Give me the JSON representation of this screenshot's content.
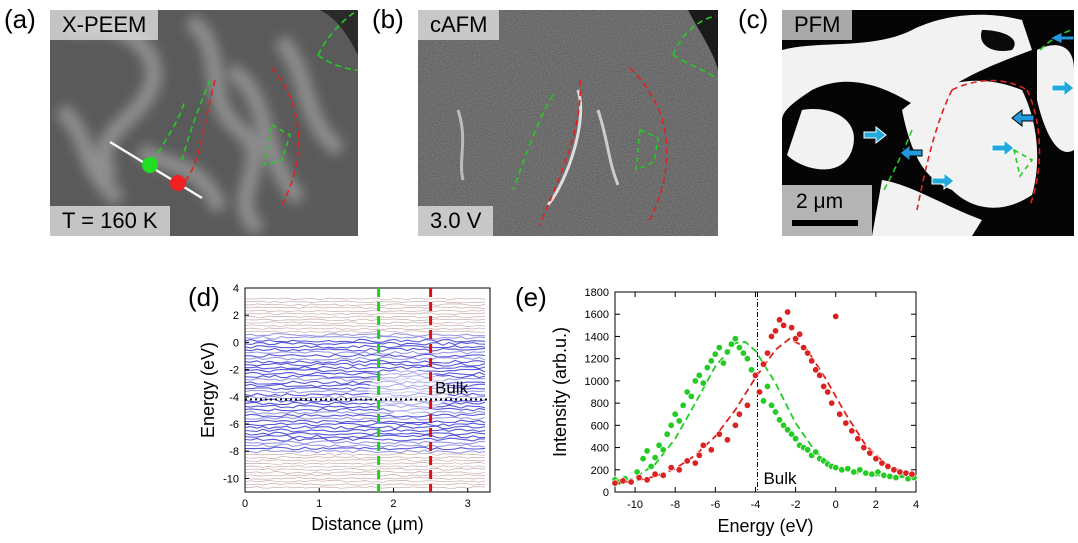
{
  "panels": {
    "a": {
      "label": "(a)",
      "title": "X-PEEM",
      "caption": "T = 160 K"
    },
    "b": {
      "label": "(b)",
      "title": "cAFM",
      "caption": "3.0 V"
    },
    "c": {
      "label": "(c)",
      "title": "PFM",
      "scalebar": "2 μm"
    },
    "d": {
      "label": "(d)"
    },
    "e": {
      "label": "(e)"
    }
  },
  "chart_data": [
    {
      "type": "heatmap",
      "panel": "d",
      "xlabel": "Distance (μm)",
      "ylabel": "Energy (eV)",
      "xlim": [
        0,
        3.3
      ],
      "ylim": [
        -11,
        4
      ],
      "xticks": [
        "0",
        "1",
        "2",
        "3"
      ],
      "yticks": [
        "4",
        "2",
        "0",
        "-2",
        "-4",
        "-6",
        "-8",
        "-10"
      ],
      "xtick_values": [
        0,
        1,
        2,
        3
      ],
      "ytick_values": [
        4,
        2,
        0,
        -2,
        -4,
        -6,
        -8,
        -10
      ],
      "markers": [
        {
          "orientation": "vertical",
          "x": 1.8,
          "color": "#22cc22"
        },
        {
          "orientation": "vertical",
          "x": 2.5,
          "color": "#dd1111"
        },
        {
          "orientation": "horizontal",
          "y": -4.2,
          "color": "#000000",
          "label": "Bulk"
        }
      ]
    },
    {
      "type": "scatter",
      "panel": "e",
      "xlabel": "Energy (eV)",
      "ylabel": "Intensity (arb.u.)",
      "xlim": [
        -11,
        4
      ],
      "ylim": [
        0,
        1800
      ],
      "xticks": [
        "-10",
        "-8",
        "-6",
        "-4",
        "-2",
        "0",
        "2",
        "4"
      ],
      "yticks": [
        "0",
        "200",
        "400",
        "600",
        "800",
        "1000",
        "1200",
        "1400",
        "1600",
        "1800"
      ],
      "xtick_values": [
        -10,
        -8,
        -6,
        -4,
        -2,
        0,
        2,
        4
      ],
      "ytick_values": [
        0,
        200,
        400,
        600,
        800,
        1000,
        1200,
        1400,
        1600,
        1800
      ],
      "vline": {
        "x": -3.9,
        "label": "Bulk"
      },
      "series": [
        {
          "color": "#22cc22",
          "points": [
            [
              -11,
              110
            ],
            [
              -10.8,
              90
            ],
            [
              -10.5,
              120
            ],
            [
              -10.2,
              100
            ],
            [
              -9.9,
              180
            ],
            [
              -9.6,
              300
            ],
            [
              -9.4,
              370
            ],
            [
              -9.2,
              230
            ],
            [
              -9.0,
              310
            ],
            [
              -8.8,
              420
            ],
            [
              -8.6,
              380
            ],
            [
              -8.4,
              520
            ],
            [
              -8.2,
              600
            ],
            [
              -8.0,
              700
            ],
            [
              -7.8,
              640
            ],
            [
              -7.6,
              780
            ],
            [
              -7.4,
              900
            ],
            [
              -7.2,
              860
            ],
            [
              -7.0,
              1000
            ],
            [
              -6.8,
              1050
            ],
            [
              -6.6,
              980
            ],
            [
              -6.4,
              1120
            ],
            [
              -6.2,
              1180
            ],
            [
              -6.0,
              1240
            ],
            [
              -5.8,
              1300
            ],
            [
              -5.6,
              1160
            ],
            [
              -5.4,
              1260
            ],
            [
              -5.2,
              1330
            ],
            [
              -5.0,
              1380
            ],
            [
              -4.8,
              1300
            ],
            [
              -4.6,
              1250
            ],
            [
              -4.4,
              1200
            ],
            [
              -4.2,
              1100
            ],
            [
              -4.0,
              1050
            ],
            [
              -3.8,
              900
            ],
            [
              -3.6,
              820
            ],
            [
              -3.4,
              950
            ],
            [
              -3.2,
              780
            ],
            [
              -3.0,
              720
            ],
            [
              -2.8,
              650
            ],
            [
              -2.6,
              600
            ],
            [
              -2.4,
              560
            ],
            [
              -2.2,
              520
            ],
            [
              -2.0,
              480
            ],
            [
              -1.8,
              420
            ],
            [
              -1.6,
              400
            ],
            [
              -1.4,
              380
            ],
            [
              -1.2,
              330
            ],
            [
              -1.0,
              360
            ],
            [
              -0.8,
              300
            ],
            [
              -0.6,
              280
            ],
            [
              -0.4,
              250
            ],
            [
              -0.2,
              230
            ],
            [
              0.0,
              220
            ],
            [
              0.3,
              200
            ],
            [
              0.6,
              210
            ],
            [
              0.9,
              180
            ],
            [
              1.2,
              200
            ],
            [
              1.5,
              170
            ],
            [
              1.8,
              160
            ],
            [
              2.1,
              180
            ],
            [
              2.4,
              150
            ],
            [
              2.7,
              140
            ],
            [
              3.0,
              130
            ],
            [
              3.3,
              150
            ],
            [
              3.6,
              120
            ],
            [
              3.9,
              130
            ]
          ],
          "fit": [
            [
              -11,
              80
            ],
            [
              -10,
              130
            ],
            [
              -9,
              250
            ],
            [
              -8,
              480
            ],
            [
              -7,
              800
            ],
            [
              -6,
              1130
            ],
            [
              -5,
              1340
            ],
            [
              -4.5,
              1350
            ],
            [
              -4,
              1270
            ],
            [
              -3,
              980
            ],
            [
              -2,
              620
            ],
            [
              -1,
              360
            ],
            [
              0,
              220
            ],
            [
              1,
              170
            ],
            [
              2,
              150
            ],
            [
              3,
              140
            ],
            [
              4,
              130
            ]
          ]
        },
        {
          "color": "#dd2222",
          "points": [
            [
              -11,
              80
            ],
            [
              -10.6,
              100
            ],
            [
              -10.2,
              90
            ],
            [
              -9.8,
              130
            ],
            [
              -9.4,
              110
            ],
            [
              -9.0,
              160
            ],
            [
              -8.6,
              150
            ],
            [
              -8.2,
              220
            ],
            [
              -7.8,
              200
            ],
            [
              -7.4,
              280
            ],
            [
              -7.0,
              260
            ],
            [
              -6.8,
              330
            ],
            [
              -6.6,
              420
            ],
            [
              -6.2,
              380
            ],
            [
              -5.8,
              520
            ],
            [
              -5.4,
              470
            ],
            [
              -5.0,
              600
            ],
            [
              -4.8,
              700
            ],
            [
              -4.4,
              780
            ],
            [
              -4.0,
              1050
            ],
            [
              -3.8,
              900
            ],
            [
              -3.6,
              1150
            ],
            [
              -3.4,
              1250
            ],
            [
              -3.2,
              1400
            ],
            [
              -3.0,
              1450
            ],
            [
              -2.8,
              1550
            ],
            [
              -2.6,
              1500
            ],
            [
              -2.4,
              1620
            ],
            [
              -2.2,
              1480
            ],
            [
              -2.0,
              1380
            ],
            [
              -1.8,
              1420
            ],
            [
              -1.6,
              1300
            ],
            [
              -1.4,
              1250
            ],
            [
              -1.2,
              1180
            ],
            [
              -1.0,
              1100
            ],
            [
              -0.8,
              1050
            ],
            [
              -0.6,
              950
            ],
            [
              -0.4,
              900
            ],
            [
              -0.2,
              800
            ],
            [
              0.0,
              1580
            ],
            [
              0.2,
              700
            ],
            [
              0.5,
              620
            ],
            [
              0.8,
              550
            ],
            [
              1.1,
              480
            ],
            [
              1.4,
              400
            ],
            [
              1.7,
              350
            ],
            [
              2.0,
              300
            ],
            [
              2.3,
              260
            ],
            [
              2.6,
              230
            ],
            [
              2.9,
              200
            ],
            [
              3.2,
              180
            ],
            [
              3.5,
              170
            ],
            [
              3.8,
              160
            ]
          ],
          "fit": [
            [
              -11,
              80
            ],
            [
              -10,
              100
            ],
            [
              -9,
              140
            ],
            [
              -8,
              210
            ],
            [
              -7,
              330
            ],
            [
              -6,
              500
            ],
            [
              -5,
              740
            ],
            [
              -4,
              1030
            ],
            [
              -3,
              1280
            ],
            [
              -2.3,
              1380
            ],
            [
              -1.5,
              1300
            ],
            [
              -0.5,
              1020
            ],
            [
              0.5,
              700
            ],
            [
              1.5,
              420
            ],
            [
              2.5,
              250
            ],
            [
              3.5,
              170
            ],
            [
              4,
              150
            ]
          ]
        }
      ]
    }
  ]
}
